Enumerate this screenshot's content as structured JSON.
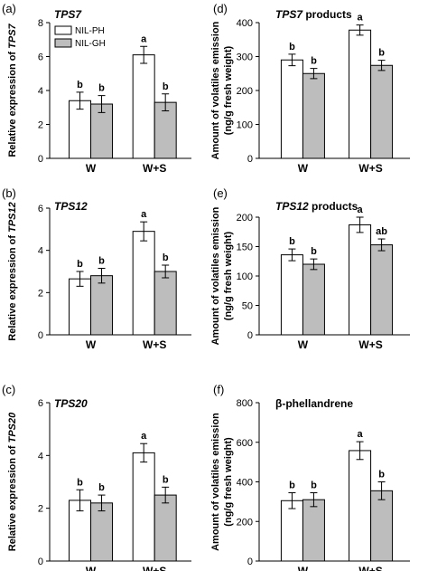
{
  "colors": {
    "nil_ph": "#ffffff",
    "nil_gh": "#bdbdbd",
    "axis": "#000000"
  },
  "legend": {
    "items": [
      "NIL-PH",
      "NIL-GH"
    ]
  },
  "chart_data": [
    {
      "type": "bar",
      "panel_label": "(a)",
      "title": "TPS7",
      "title_italic": true,
      "ylabel": [
        "Relative expression of TPS7"
      ],
      "ylim": [
        0,
        8
      ],
      "yticks": [
        0,
        2,
        4,
        6,
        8
      ],
      "categories": [
        "W",
        "W+S"
      ],
      "show_legend": true,
      "series": [
        {
          "name": "NIL-PH",
          "values": [
            3.4,
            6.1
          ],
          "errors": [
            0.5,
            0.5
          ],
          "letters": [
            "b",
            "a"
          ]
        },
        {
          "name": "NIL-GH",
          "values": [
            3.2,
            3.3
          ],
          "errors": [
            0.5,
            0.5
          ],
          "letters": [
            "b",
            "b"
          ]
        }
      ]
    },
    {
      "type": "bar",
      "panel_label": "(d)",
      "title": "TPS7 products",
      "title_italic": false,
      "ylabel": [
        "Amount of volatiles emission",
        "(ng/g fresh weight)"
      ],
      "ylim": [
        0,
        400
      ],
      "yticks": [
        0,
        100,
        200,
        300,
        400
      ],
      "categories": [
        "W",
        "W+S"
      ],
      "show_legend": false,
      "series": [
        {
          "name": "NIL-PH",
          "values": [
            290,
            378
          ],
          "errors": [
            17,
            15
          ],
          "letters": [
            "b",
            "a"
          ]
        },
        {
          "name": "NIL-GH",
          "values": [
            250,
            274
          ],
          "errors": [
            15,
            15
          ],
          "letters": [
            "b",
            "b"
          ]
        }
      ]
    },
    {
      "type": "bar",
      "panel_label": "(b)",
      "title": "TPS12",
      "title_italic": true,
      "ylabel": [
        "Relative expression of TPS12"
      ],
      "ylim": [
        0,
        6
      ],
      "yticks": [
        0,
        2,
        4,
        6
      ],
      "categories": [
        "W",
        "W+S"
      ],
      "show_legend": false,
      "series": [
        {
          "name": "NIL-PH",
          "values": [
            2.65,
            4.9
          ],
          "errors": [
            0.35,
            0.45
          ],
          "letters": [
            "b",
            "a"
          ]
        },
        {
          "name": "NIL-GH",
          "values": [
            2.8,
            3.0
          ],
          "errors": [
            0.35,
            0.3
          ],
          "letters": [
            "b",
            "b"
          ]
        }
      ]
    },
    {
      "type": "bar",
      "panel_label": "(e)",
      "title": "TPS12 products",
      "title_italic": false,
      "ylabel": [
        "Amount of volatiles emission",
        "(ng/g fresh weight)"
      ],
      "ylim": [
        0,
        200
      ],
      "yticks": [
        0,
        50,
        100,
        150,
        200
      ],
      "categories": [
        "W",
        "W+S"
      ],
      "show_legend": false,
      "series": [
        {
          "name": "NIL-PH",
          "values": [
            136,
            187
          ],
          "errors": [
            10,
            13
          ],
          "letters": [
            "b",
            "a"
          ]
        },
        {
          "name": "NIL-GH",
          "values": [
            120,
            153
          ],
          "errors": [
            9,
            10
          ],
          "letters": [
            "b",
            "ab"
          ]
        }
      ]
    },
    {
      "type": "bar",
      "panel_label": "(c)",
      "title": "TPS20",
      "title_italic": true,
      "ylabel": [
        "Relative expression of TPS20"
      ],
      "ylim": [
        0,
        6
      ],
      "yticks": [
        0,
        2,
        4,
        6
      ],
      "categories": [
        "W",
        "W+S"
      ],
      "show_legend": false,
      "series": [
        {
          "name": "NIL-PH",
          "values": [
            2.3,
            4.1
          ],
          "errors": [
            0.4,
            0.35
          ],
          "letters": [
            "b",
            "a"
          ]
        },
        {
          "name": "NIL-GH",
          "values": [
            2.2,
            2.5
          ],
          "errors": [
            0.3,
            0.3
          ],
          "letters": [
            "b",
            "b"
          ]
        }
      ]
    },
    {
      "type": "bar",
      "panel_label": "(f)",
      "title": "β-phellandrene",
      "title_italic": false,
      "ylabel": [
        "Amount of volatiles emission",
        "(ng/g fresh weight)"
      ],
      "ylim": [
        0,
        800
      ],
      "yticks": [
        0,
        200,
        400,
        600,
        800
      ],
      "categories": [
        "W",
        "W+S"
      ],
      "show_legend": false,
      "series": [
        {
          "name": "NIL-PH",
          "values": [
            305,
            558
          ],
          "errors": [
            40,
            45
          ],
          "letters": [
            "b",
            "a"
          ]
        },
        {
          "name": "NIL-GH",
          "values": [
            310,
            355
          ],
          "errors": [
            35,
            45
          ],
          "letters": [
            "b",
            "b"
          ]
        }
      ]
    }
  ]
}
